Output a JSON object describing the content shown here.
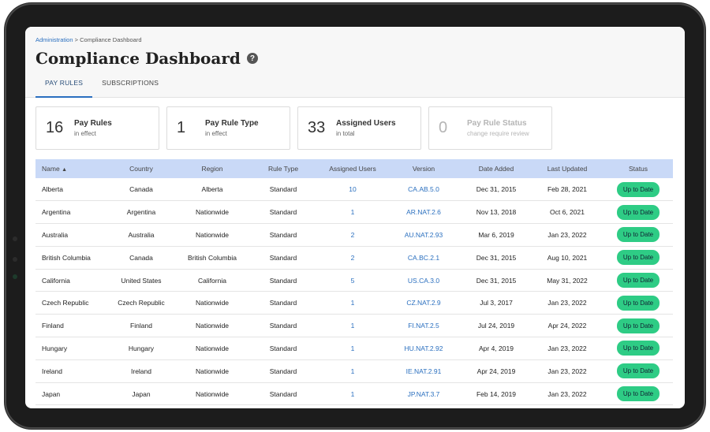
{
  "breadcrumb": {
    "root": "Administration",
    "separator": ">",
    "current": "Compliance Dashboard"
  },
  "page": {
    "title": "Compliance Dashboard",
    "help_icon": "question-circle-icon"
  },
  "tabs": [
    {
      "label": "PAY RULES",
      "active": true
    },
    {
      "label": "SUBSCRIPTIONS",
      "active": false
    }
  ],
  "cards": [
    {
      "value": "16",
      "label": "Pay Rules",
      "sub": "in effect"
    },
    {
      "value": "1",
      "label": "Pay Rule Type",
      "sub": "in effect"
    },
    {
      "value": "33",
      "label": "Assigned Users",
      "sub": "in total"
    },
    {
      "value": "0",
      "label": "Pay Rule Status",
      "sub": "change require review"
    }
  ],
  "table": {
    "sort_indicator": "▲",
    "headers": [
      "Name",
      "Country",
      "Region",
      "Rule Type",
      "Assigned Users",
      "Version",
      "Date Added",
      "Last Updated",
      "Status"
    ],
    "rows": [
      [
        "Alberta",
        "Canada",
        "Alberta",
        "Standard",
        "10",
        "CA.AB.5.0",
        "Dec 31, 2015",
        "Feb 28, 2021",
        "Up to Date"
      ],
      [
        "Argentina",
        "Argentina",
        "Nationwide",
        "Standard",
        "1",
        "AR.NAT.2.6",
        "Nov 13, 2018",
        "Oct 6, 2021",
        "Up to Date"
      ],
      [
        "Australia",
        "Australia",
        "Nationwide",
        "Standard",
        "2",
        "AU.NAT.2.93",
        "Mar 6, 2019",
        "Jan 23, 2022",
        "Up to Date"
      ],
      [
        "British Columbia",
        "Canada",
        "British Columbia",
        "Standard",
        "2",
        "CA.BC.2.1",
        "Dec 31, 2015",
        "Aug 10, 2021",
        "Up to Date"
      ],
      [
        "California",
        "United States",
        "California",
        "Standard",
        "5",
        "US.CA.3.0",
        "Dec 31, 2015",
        "May 31, 2022",
        "Up to Date"
      ],
      [
        "Czech Republic",
        "Czech Republic",
        "Nationwide",
        "Standard",
        "1",
        "CZ.NAT.2.9",
        "Jul 3, 2017",
        "Jan 23, 2022",
        "Up to Date"
      ],
      [
        "Finland",
        "Finland",
        "Nationwide",
        "Standard",
        "1",
        "FI.NAT.2.5",
        "Jul 24, 2019",
        "Apr 24, 2022",
        "Up to Date"
      ],
      [
        "Hungary",
        "Hungary",
        "Nationwide",
        "Standard",
        "1",
        "HU.NAT.2.92",
        "Apr 4, 2019",
        "Jan 23, 2022",
        "Up to Date"
      ],
      [
        "Ireland",
        "Ireland",
        "Nationwide",
        "Standard",
        "1",
        "IE.NAT.2.91",
        "Apr 24, 2019",
        "Jan 23, 2022",
        "Up to Date"
      ],
      [
        "Japan",
        "Japan",
        "Nationwide",
        "Standard",
        "1",
        "JP.NAT.3.7",
        "Feb 14, 2019",
        "Jan 23, 2022",
        "Up to Date"
      ]
    ]
  },
  "colors": {
    "accent": "#2a6fbf",
    "header_row": "#c9d9f7",
    "status_badge": "#2ecc85"
  }
}
